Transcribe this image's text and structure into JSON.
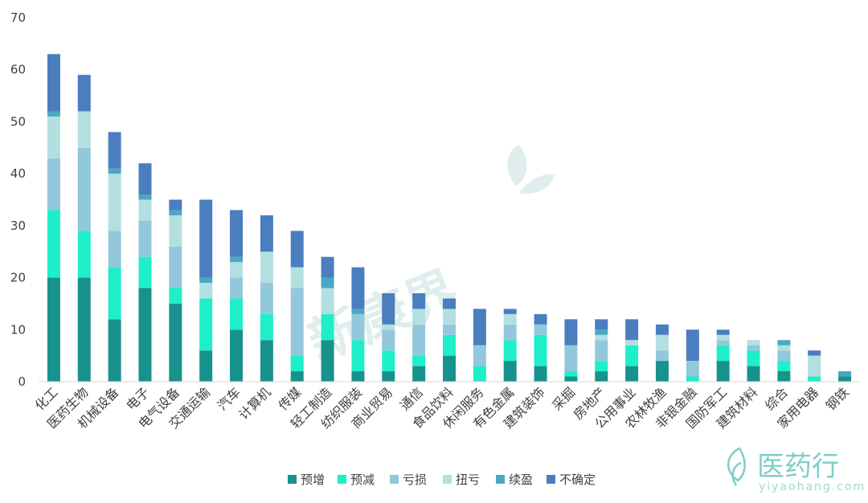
{
  "chart_data": {
    "type": "bar",
    "stacked": true,
    "categories": [
      "化工",
      "医药生物",
      "机械设备",
      "电子",
      "电气设备",
      "交通运输",
      "汽车",
      "计算机",
      "传媒",
      "轻工制造",
      "纺织服装",
      "商业贸易",
      "通信",
      "食品饮料",
      "休闲服务",
      "有色金属",
      "建筑装饰",
      "采掘",
      "房地产",
      "公用事业",
      "农林牧渔",
      "非银金融",
      "国防军工",
      "建筑材料",
      "综合",
      "家用电器",
      "钢铁"
    ],
    "series": [
      {
        "name": "预增",
        "color": "#17928c",
        "values": [
          20,
          20,
          12,
          18,
          15,
          6,
          10,
          8,
          2,
          8,
          2,
          2,
          3,
          5,
          0,
          4,
          3,
          1,
          2,
          3,
          4,
          0,
          4,
          3,
          2,
          0,
          1
        ]
      },
      {
        "name": "预减",
        "color": "#1fefc8",
        "values": [
          13,
          9,
          10,
          6,
          3,
          10,
          6,
          5,
          3,
          5,
          6,
          4,
          2,
          4,
          3,
          4,
          6,
          1,
          2,
          4,
          0,
          1,
          3,
          3,
          2,
          1,
          0
        ]
      },
      {
        "name": "亏损",
        "color": "#93c8dc",
        "values": [
          10,
          16,
          7,
          7,
          8,
          0,
          4,
          6,
          13,
          0,
          5,
          4,
          6,
          2,
          4,
          3,
          2,
          5,
          4,
          0,
          2,
          3,
          1,
          1,
          2,
          0,
          0
        ]
      },
      {
        "name": "扭亏",
        "color": "#b4dfe1",
        "values": [
          8,
          7,
          11,
          4,
          6,
          3,
          3,
          6,
          4,
          5,
          0,
          1,
          3,
          3,
          0,
          2,
          0,
          0,
          1,
          1,
          3,
          0,
          1,
          1,
          1,
          4,
          0
        ]
      },
      {
        "name": "续盈",
        "color": "#4aa8c4",
        "values": [
          1,
          0,
          1,
          1,
          1,
          1,
          1,
          0,
          0,
          2,
          1,
          0,
          0,
          0,
          0,
          0,
          0,
          0,
          1,
          0,
          0,
          0,
          0,
          0,
          1,
          0,
          1
        ]
      },
      {
        "name": "不确定",
        "color": "#4a7ebf",
        "values": [
          11,
          7,
          7,
          6,
          2,
          15,
          9,
          7,
          7,
          4,
          8,
          6,
          3,
          2,
          7,
          1,
          2,
          5,
          2,
          4,
          2,
          6,
          1,
          0,
          0,
          1,
          0
        ]
      }
    ],
    "ylim": [
      0,
      70
    ],
    "yticks": [
      0,
      10,
      20,
      30,
      40,
      50,
      60,
      70
    ],
    "grid": false,
    "legend_position": "bottom",
    "xlabel": "",
    "ylabel": ""
  },
  "watermark": {
    "text": "新康界"
  },
  "logo": {
    "text": "医药行",
    "sub": "yiyaohang.com",
    "icon": "leaf-icon"
  }
}
